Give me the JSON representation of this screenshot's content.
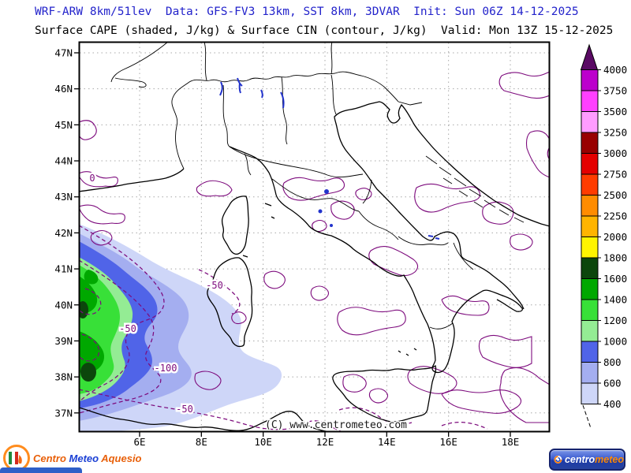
{
  "header": {
    "line1": "WRF-ARW 8km/51lev  Data: GFS-FV3 13km, SST 8km, 3DVAR  Init: Sun 06Z 14-12-2025",
    "line2": "Surface CAPE (shaded, J/kg) & Surface CIN (contour, J/kg)  Valid: Mon 13Z 15-12-2025",
    "line1_color": "#2323cb"
  },
  "map": {
    "lat_ticks": [
      "47N",
      "46N",
      "45N",
      "44N",
      "43N",
      "42N",
      "41N",
      "40N",
      "39N",
      "38N",
      "37N"
    ],
    "lon_ticks": [
      "6E",
      "8E",
      "10E",
      "12E",
      "14E",
      "16E",
      "18E"
    ],
    "watermark": "(C) www.centrometeo.com",
    "cin_contour_labels": [
      "-50",
      "-100",
      "-50",
      "-50",
      "0"
    ],
    "cin_color": "#7d0b7d"
  },
  "colorbar": {
    "tick_labels": [
      "4000",
      "3750",
      "3500",
      "3250",
      "3000",
      "2750",
      "2500",
      "2250",
      "2000",
      "1800",
      "1600",
      "1400",
      "1200",
      "1000",
      "800",
      "600",
      "400"
    ],
    "segment_colors": [
      "#bc00cc",
      "#ff40ff",
      "#ff9cff",
      "#980000",
      "#e40000",
      "#ff3c00",
      "#ff8c00",
      "#ffb400",
      "#fff400",
      "#0c460c",
      "#00a800",
      "#38e038",
      "#94ec94",
      "#5064e8",
      "#a4aef0",
      "#ced6f8"
    ],
    "arrow_color": "#5a0a64"
  },
  "footer": {
    "left_logo": {
      "word1": "Centro",
      "word2": "Meteo",
      "word3": "Aquesio"
    },
    "right_logo": {
      "word1": "centro",
      "word2": "meteo"
    }
  }
}
